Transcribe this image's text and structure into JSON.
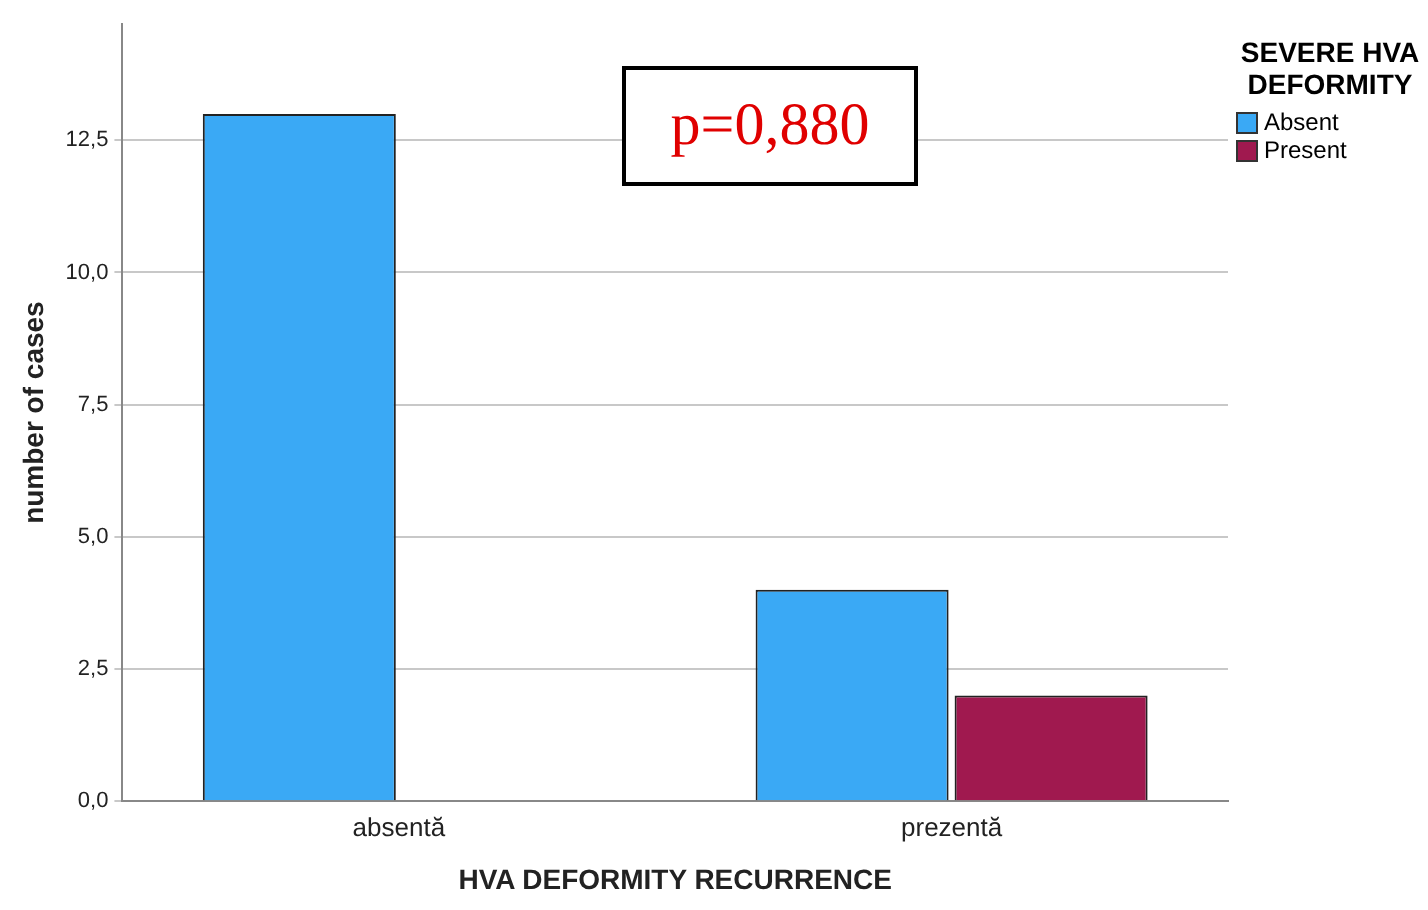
{
  "chart_data": {
    "type": "bar",
    "xlabel": "HVA DEFORMITY RECURRENCE",
    "ylabel": "number of cases",
    "legend_title": "SEVERE HVA DEFORMITY",
    "categories": [
      "absentă",
      "prezentă"
    ],
    "series": [
      {
        "name": "Absent",
        "color": "#3aa9f5",
        "values": [
          13,
          4
        ]
      },
      {
        "name": "Present",
        "color": "#a0194f",
        "values": [
          0,
          2
        ]
      }
    ],
    "ylim": [
      0,
      14.7
    ],
    "yticks": [
      {
        "value": 0,
        "label": "0,0"
      },
      {
        "value": 2.5,
        "label": "2,5"
      },
      {
        "value": 5,
        "label": "5,0"
      },
      {
        "value": 7.5,
        "label": "7,5"
      },
      {
        "value": 10,
        "label": "10,0"
      },
      {
        "value": 12.5,
        "label": "12,5"
      }
    ],
    "grid": "y",
    "legend": "top right",
    "annotations": [
      "p=0,880"
    ]
  }
}
